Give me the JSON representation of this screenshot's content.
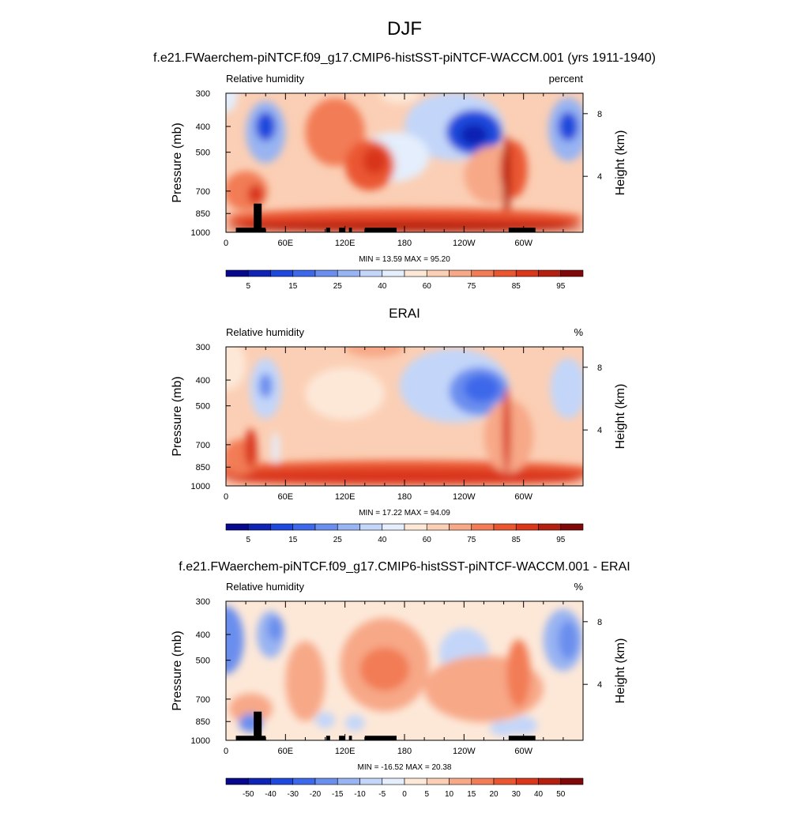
{
  "page_title": "DJF",
  "chart_data": [
    {
      "type": "heatmap",
      "title": "f.e21.FWaerchem-piNTCF.f09_g17.CMIP6-histSST-piNTCF-WACCM.001 (yrs 1911-1940)",
      "left_label": "Relative humidity",
      "right_label": "percent",
      "ylabel": "Pressure (mb)",
      "ylabel_right": "Height (km)",
      "x_ticks": [
        "0",
        "60E",
        "120E",
        "180",
        "120W",
        "60W"
      ],
      "y_ticks": [
        "300",
        "400",
        "500",
        "700",
        "850",
        "1000"
      ],
      "height_ticks": [
        "8",
        "4"
      ],
      "stats": "MIN = 13.59  MAX = 95.20",
      "colorbar_labels": [
        "5",
        "15",
        "25",
        "40",
        "60",
        "75",
        "85",
        "95"
      ],
      "colormap": "sequential",
      "terrain": true,
      "colors": [
        "#08088c",
        "#0f24b4",
        "#1f48dc",
        "#3d68ea",
        "#6a8eee",
        "#98b4f2",
        "#c3d6f9",
        "#e4eefc",
        "#fde8d8",
        "#fbcfb5",
        "#f7a887",
        "#f27c55",
        "#ea5630",
        "#d9361a",
        "#b4200f",
        "#800808"
      ]
    },
    {
      "type": "heatmap",
      "title": "ERAI",
      "left_label": "Relative humidity",
      "right_label": "%",
      "ylabel": "Pressure (mb)",
      "ylabel_right": "Height (km)",
      "x_ticks": [
        "0",
        "60E",
        "120E",
        "180",
        "120W",
        "60W"
      ],
      "y_ticks": [
        "300",
        "400",
        "500",
        "700",
        "850",
        "1000"
      ],
      "height_ticks": [
        "8",
        "4"
      ],
      "stats": "MIN = 17.22  MAX = 94.09",
      "colorbar_labels": [
        "5",
        "15",
        "25",
        "40",
        "60",
        "75",
        "85",
        "95"
      ],
      "colormap": "sequential",
      "terrain": false
    },
    {
      "type": "heatmap",
      "title": "f.e21.FWaerchem-piNTCF.f09_g17.CMIP6-histSST-piNTCF-WACCM.001 - ERAI",
      "left_label": "Relative humidity",
      "right_label": "%",
      "ylabel": "Pressure (mb)",
      "ylabel_right": "Height (km)",
      "x_ticks": [
        "0",
        "60E",
        "120E",
        "180",
        "120W",
        "60W"
      ],
      "y_ticks": [
        "300",
        "400",
        "500",
        "700",
        "850",
        "1000"
      ],
      "height_ticks": [
        "8",
        "4"
      ],
      "stats": "MIN = -16.52  MAX = 20.38",
      "colorbar_labels": [
        "-50",
        "-40",
        "-30",
        "-20",
        "-15",
        "-10",
        "-5",
        "0",
        "5",
        "10",
        "15",
        "20",
        "30",
        "40",
        "50"
      ],
      "colormap": "difference",
      "terrain": true
    }
  ]
}
